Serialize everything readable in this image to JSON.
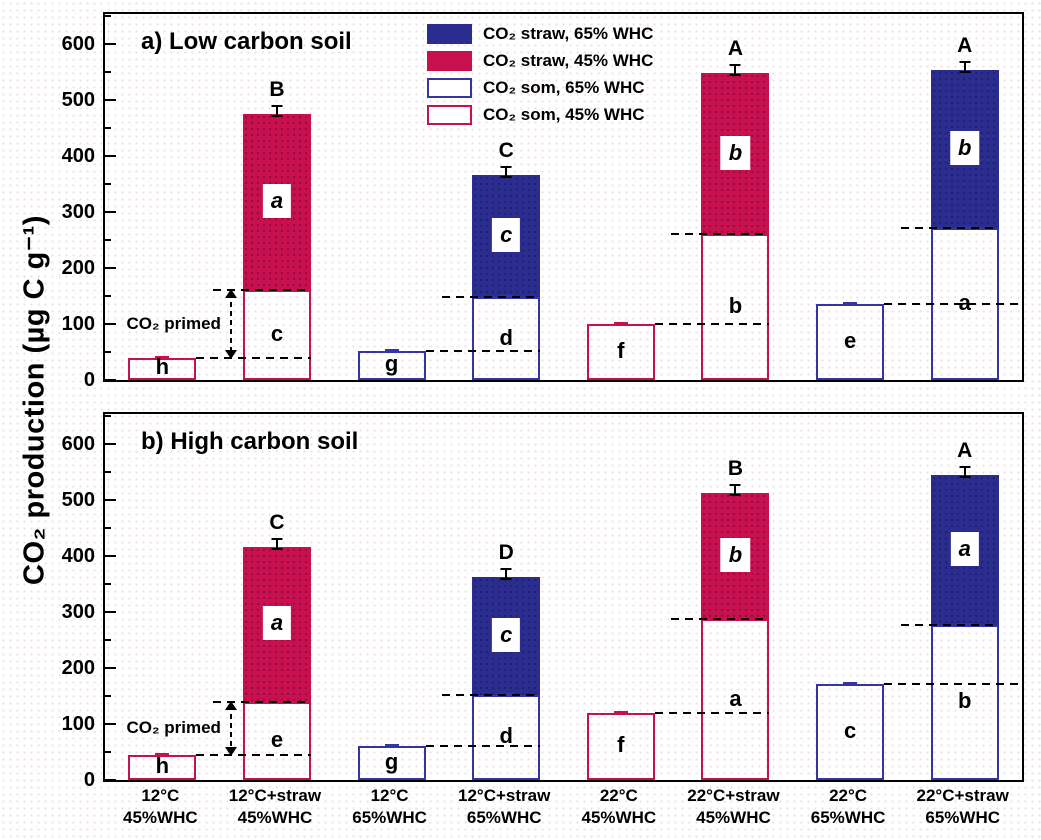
{
  "figure": {
    "y_axis_label": "CO₂ production (µg C g⁻¹)",
    "colors": {
      "straw_45_fill": "#c8104f",
      "straw_65_fill": "#2b2d8e",
      "som_45_border": "#c4114f",
      "som_65_border": "#3434a2",
      "axis": "#000000"
    }
  },
  "legend": {
    "items": [
      {
        "key": "straw_65",
        "label": "CO₂ straw, 65% WHC",
        "style": "filled-blue"
      },
      {
        "key": "straw_45",
        "label": "CO₂ straw, 45% WHC",
        "style": "filled-red"
      },
      {
        "key": "som_65",
        "label": "CO₂ som, 65% WHC",
        "style": "outline-blue"
      },
      {
        "key": "som_45",
        "label": "CO₂ som, 45% WHC",
        "style": "outline-red"
      }
    ]
  },
  "x_categories": [
    {
      "line1": "12°C",
      "line2": "45%WHC"
    },
    {
      "line1": "12°C+straw",
      "line2": "45%WHC"
    },
    {
      "line1": "12°C",
      "line2": "65%WHC"
    },
    {
      "line1": "12°C+straw",
      "line2": "65%WHC"
    },
    {
      "line1": "22°C",
      "line2": "45%WHC"
    },
    {
      "line1": "22°C+straw",
      "line2": "45%WHC"
    },
    {
      "line1": "22°C",
      "line2": "65%WHC"
    },
    {
      "line1": "22°C+straw",
      "line2": "65%WHC"
    }
  ],
  "chart_data": [
    {
      "type": "bar",
      "panel": "a",
      "title": "a) Low carbon soil",
      "ylabel": "CO₂ production (µg C g⁻¹)",
      "ylim": [
        0,
        600
      ],
      "yticks": [
        0,
        100,
        200,
        300,
        400,
        500,
        600
      ],
      "categories": [
        "12°C 45%WHC",
        "12°C+straw 45%WHC",
        "12°C 65%WHC",
        "12°C+straw 65%WHC",
        "22°C 45%WHC",
        "22°C+straw 45%WHC",
        "22°C 65%WHC",
        "22°C+straw 65%WHC"
      ],
      "bars": [
        {
          "whc": "45",
          "som": 40,
          "letter": "h"
        },
        {
          "whc": "45",
          "som": 160,
          "total": 475,
          "som_letter": "c",
          "straw_letter": "a",
          "sig": "B"
        },
        {
          "whc": "65",
          "som": 52,
          "letter": "g"
        },
        {
          "whc": "65",
          "som": 148,
          "total": 366,
          "som_letter": "d",
          "straw_letter": "c",
          "sig": "C"
        },
        {
          "whc": "45",
          "som": 100,
          "letter": "f"
        },
        {
          "whc": "45",
          "som": 260,
          "total": 547,
          "som_letter": "b",
          "straw_letter": "b",
          "sig": "A"
        },
        {
          "whc": "65",
          "som": 135,
          "letter": "e"
        },
        {
          "whc": "65",
          "som": 272,
          "total": 553,
          "som_letter": "a",
          "straw_letter": "b",
          "sig": "A"
        }
      ],
      "annotation": {
        "text": "CO₂ primed",
        "from": 40,
        "to": 160
      }
    },
    {
      "type": "bar",
      "panel": "b",
      "title": "b) High carbon soil",
      "ylabel": "CO₂ production (µg C g⁻¹)",
      "ylim": [
        0,
        600
      ],
      "yticks": [
        0,
        100,
        200,
        300,
        400,
        500,
        600
      ],
      "categories": [
        "12°C 45%WHC",
        "12°C+straw 45%WHC",
        "12°C 65%WHC",
        "12°C+straw 65%WHC",
        "22°C 45%WHC",
        "22°C+straw 45%WHC",
        "22°C 65%WHC",
        "22°C+straw 65%WHC"
      ],
      "bars": [
        {
          "whc": "45",
          "som": 45,
          "letter": "h"
        },
        {
          "whc": "45",
          "som": 140,
          "total": 415,
          "som_letter": "e",
          "straw_letter": "a",
          "sig": "C"
        },
        {
          "whc": "65",
          "som": 60,
          "letter": "g"
        },
        {
          "whc": "65",
          "som": 152,
          "total": 363,
          "som_letter": "d",
          "straw_letter": "c",
          "sig": "D"
        },
        {
          "whc": "45",
          "som": 120,
          "letter": "f"
        },
        {
          "whc": "45",
          "som": 287,
          "total": 512,
          "som_letter": "a",
          "straw_letter": "b",
          "sig": "B"
        },
        {
          "whc": "65",
          "som": 172,
          "letter": "c"
        },
        {
          "whc": "65",
          "som": 277,
          "total": 544,
          "som_letter": "b",
          "straw_letter": "a",
          "sig": "A"
        }
      ],
      "annotation": {
        "text": "CO₂ primed",
        "from": 45,
        "to": 140
      }
    }
  ]
}
